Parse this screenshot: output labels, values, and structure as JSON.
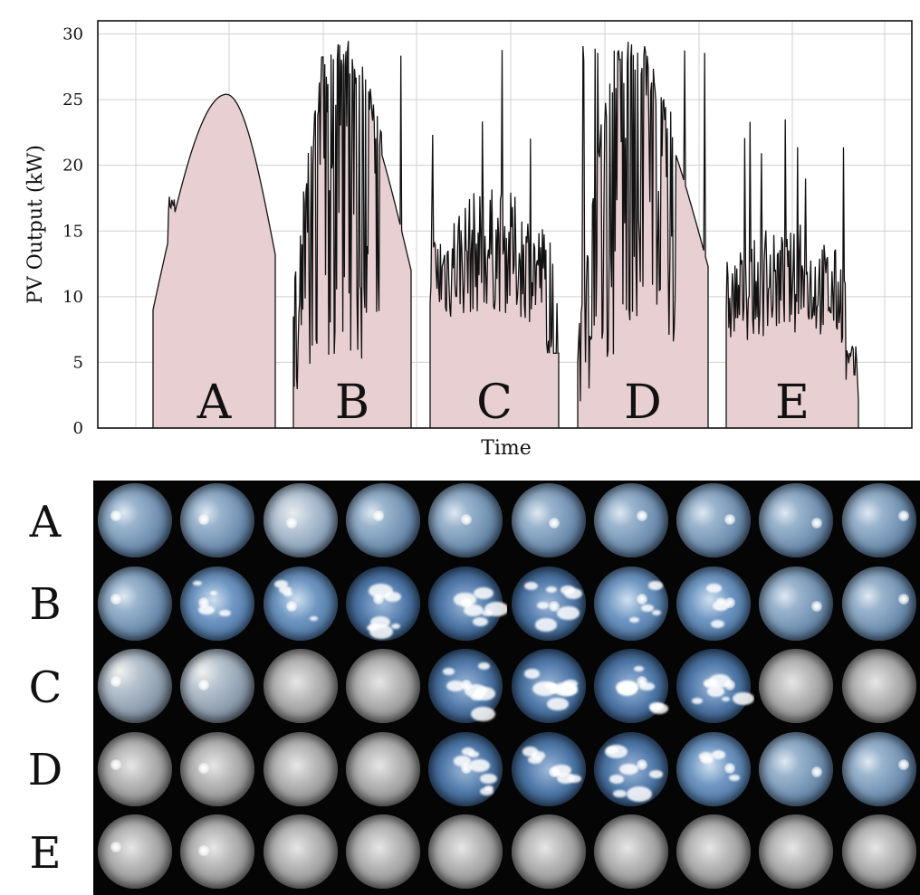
{
  "chart_data": {
    "type": "area",
    "title": "",
    "xlabel": "Time",
    "ylabel": "PV Output (kW)",
    "ylim": [
      0,
      31
    ],
    "yticks": [
      "0",
      "5",
      "10",
      "15",
      "20",
      "25",
      "30"
    ],
    "grid": true,
    "fill_color": "#e8d0d2",
    "line_color": "#111111",
    "day_labels": [
      "A",
      "B",
      "C",
      "D",
      "E"
    ],
    "days": [
      {
        "label": "A",
        "profile": "clear",
        "start": 9.0,
        "peak": 25.4,
        "end": 13.2
      },
      {
        "label": "B",
        "profile": "mixed",
        "start": 8.5,
        "peak": 29.6,
        "end": 12.0
      },
      {
        "label": "C",
        "profile": "overcast",
        "start": 9.5,
        "peak": 29.0,
        "end": 5.7
      },
      {
        "label": "D",
        "profile": "mixed",
        "start": 5.0,
        "peak": 29.4,
        "end": 12.3
      },
      {
        "label": "E",
        "profile": "overcast",
        "start": 9.0,
        "peak": 23.7,
        "end": 2.1
      }
    ],
    "colors": {
      "background": "#ffffff",
      "grid": "#d0d0d0"
    }
  },
  "image_grid": {
    "row_labels": [
      "A",
      "B",
      "C",
      "D",
      "E"
    ],
    "columns": 10,
    "rows": [
      {
        "label": "A",
        "condition": "clear",
        "cells": [
          "clear",
          "clear",
          "thin-cloud",
          "clear",
          "clear",
          "clear",
          "clear",
          "clear",
          "clear",
          "clear"
        ]
      },
      {
        "label": "B",
        "condition": "broken-cloud",
        "cells": [
          "clear",
          "scattered",
          "scattered",
          "broken",
          "broken",
          "broken",
          "scattered",
          "scattered",
          "clear",
          "clear"
        ]
      },
      {
        "label": "C",
        "condition": "overcast-thin",
        "cells": [
          "thin",
          "thin",
          "overcast",
          "overcast",
          "broken",
          "broken",
          "broken",
          "broken",
          "overcast",
          "overcast"
        ]
      },
      {
        "label": "D",
        "condition": "overcast-clearing",
        "cells": [
          "overcast",
          "overcast",
          "overcast",
          "overcast",
          "broken",
          "broken",
          "broken",
          "scattered",
          "clear",
          "clear"
        ]
      },
      {
        "label": "E",
        "condition": "overcast",
        "cells": [
          "overcast",
          "overcast",
          "overcast",
          "overcast",
          "overcast",
          "overcast",
          "overcast",
          "overcast",
          "overcast",
          "overcast"
        ]
      }
    ]
  }
}
